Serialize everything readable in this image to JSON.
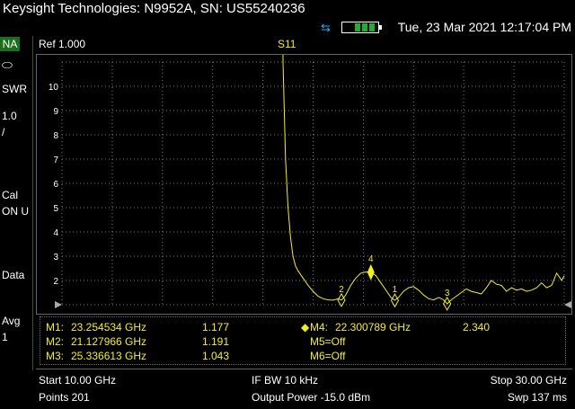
{
  "window": {
    "title": "Keysight Technologies: N9952A, SN: US55240236"
  },
  "status": {
    "datetime": "Tue, 23 Mar 2021 12:17:04 PM",
    "usb_icon": "usb-icon",
    "battery_icon": "battery-icon",
    "battery_color": "#1fb030"
  },
  "sidebar": {
    "mode": "NA",
    "format": "SWR",
    "scale": "1.0",
    "scale_unit": "/",
    "cal": "Cal",
    "cal_state": "ON U",
    "data": "Data",
    "avg": "Avg",
    "avg_count": "1"
  },
  "plot": {
    "ref": "Ref 1.000",
    "trace": "S11",
    "trace_color": "#f2ef23"
  },
  "chart_data": {
    "type": "line",
    "title": "S11",
    "xlabel": "",
    "ylabel": "",
    "xlim": [
      10.0,
      30.0
    ],
    "ylim": [
      1.0,
      11.0
    ],
    "y_ticks": [
      "10",
      "9",
      "8",
      "7",
      "6",
      "5",
      "4",
      "3",
      "2"
    ],
    "series": [
      {
        "name": "S11",
        "x": [
          18.8,
          18.85,
          18.9,
          19.0,
          19.1,
          19.2,
          19.3,
          19.4,
          19.5,
          19.6,
          19.8,
          20.0,
          20.2,
          20.4,
          20.6,
          20.8,
          21.0,
          21.13,
          21.3,
          21.5,
          21.7,
          21.9,
          22.1,
          22.3,
          22.5,
          22.7,
          22.9,
          23.1,
          23.25,
          23.4,
          23.6,
          23.8,
          24.0,
          24.2,
          24.4,
          24.6,
          24.8,
          25.0,
          25.2,
          25.34,
          25.5,
          25.7,
          25.9,
          26.1,
          26.3,
          26.5,
          26.7,
          26.9,
          27.1,
          27.3,
          27.5,
          27.7,
          27.9,
          28.1,
          28.3,
          28.5,
          28.7,
          28.9,
          29.1,
          29.3,
          29.5,
          29.7,
          29.9,
          30.0
        ],
        "y": [
          11.0,
          9.0,
          7.0,
          5.0,
          3.8,
          3.0,
          2.6,
          2.4,
          2.25,
          2.1,
          1.8,
          1.55,
          1.35,
          1.25,
          1.2,
          1.19,
          1.25,
          1.19,
          1.4,
          1.8,
          2.1,
          2.3,
          2.35,
          2.34,
          2.2,
          1.9,
          1.6,
          1.3,
          1.18,
          1.3,
          1.55,
          1.7,
          1.75,
          1.6,
          1.4,
          1.25,
          1.2,
          1.3,
          1.2,
          1.04,
          1.2,
          1.35,
          1.5,
          1.65,
          1.55,
          1.5,
          1.45,
          1.7,
          2.0,
          1.85,
          1.8,
          1.55,
          1.7,
          1.6,
          1.65,
          1.55,
          1.6,
          1.7,
          1.9,
          1.7,
          1.8,
          2.3,
          2.0,
          2.2
        ]
      }
    ],
    "markers": [
      {
        "id": "1",
        "x": 23.254534,
        "y": 1.177
      },
      {
        "id": "2",
        "x": 21.127966,
        "y": 1.191
      },
      {
        "id": "3",
        "x": 25.336613,
        "y": 1.043
      },
      {
        "id": "4",
        "x": 22.300789,
        "y": 2.34
      }
    ]
  },
  "marker_table": {
    "m1_label": "M1:",
    "m1_freq": "23.254534 GHz",
    "m1_val": "1.177",
    "m2_label": "M2:",
    "m2_freq": "21.127966 GHz",
    "m2_val": "1.191",
    "m3_label": "M3:",
    "m3_freq": "25.336613 GHz",
    "m3_val": "1.043",
    "m4_label": "M4:",
    "m4_freq": "22.300789 GHz",
    "m4_val": "2.340",
    "m5": "M5=Off",
    "m6": "M6=Off"
  },
  "footer": {
    "start": "Start 10.00 GHz",
    "points": "Points 201",
    "ifbw": "IF BW 10 kHz",
    "power": "Output Power -15.0 dBm",
    "stop": "Stop 30.00 GHz",
    "sweep": "Swp 137 ms"
  }
}
